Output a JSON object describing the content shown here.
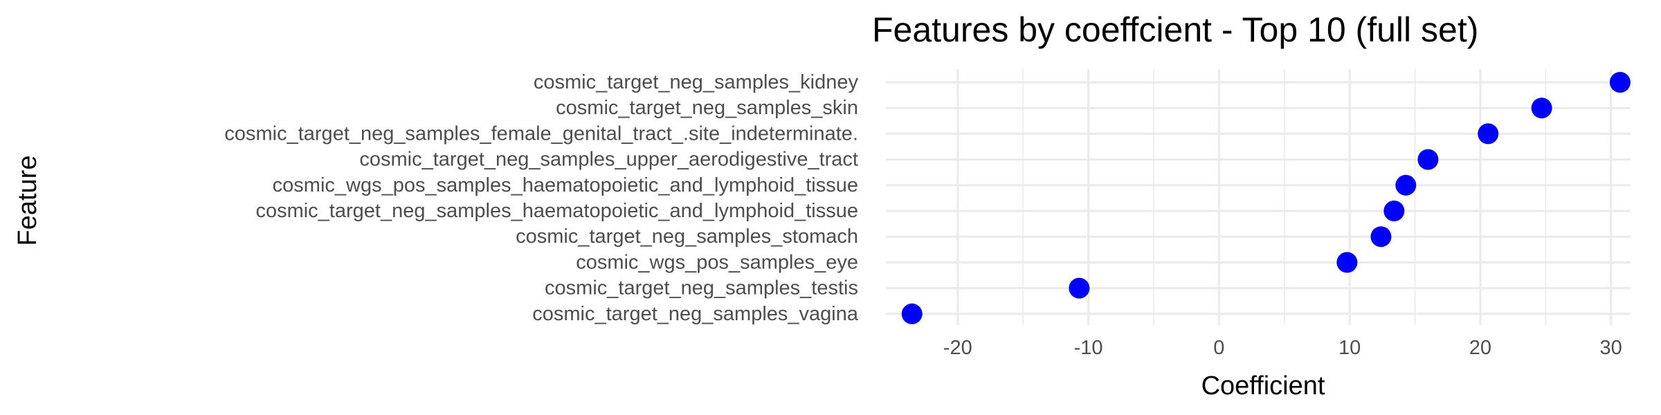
{
  "chart_data": {
    "type": "scatter",
    "title": "Features by coeffcient - Top 10 (full set)",
    "xlabel": "Coefficient",
    "ylabel": "Feature",
    "xlim": [
      -25.5,
      31.5
    ],
    "xticks": [
      -20,
      -10,
      0,
      10,
      20,
      30
    ],
    "grid": true,
    "legend": "none",
    "point_color": "#0000FF",
    "grid_color": "#EBEBEB",
    "categories": [
      "cosmic_target_neg_samples_kidney",
      "cosmic_target_neg_samples_skin",
      "cosmic_target_neg_samples_female_genital_tract_.site_indeterminate.",
      "cosmic_target_neg_samples_upper_aerodigestive_tract",
      "cosmic_wgs_pos_samples_haematopoietic_and_lymphoid_tissue",
      "cosmic_target_neg_samples_haematopoietic_and_lymphoid_tissue",
      "cosmic_target_neg_samples_stomach",
      "cosmic_wgs_pos_samples_eye",
      "cosmic_target_neg_samples_testis",
      "cosmic_target_neg_samples_vagina"
    ],
    "values": [
      30.7,
      24.7,
      20.6,
      16.0,
      14.3,
      13.4,
      12.4,
      9.8,
      -10.7,
      -23.5
    ]
  }
}
